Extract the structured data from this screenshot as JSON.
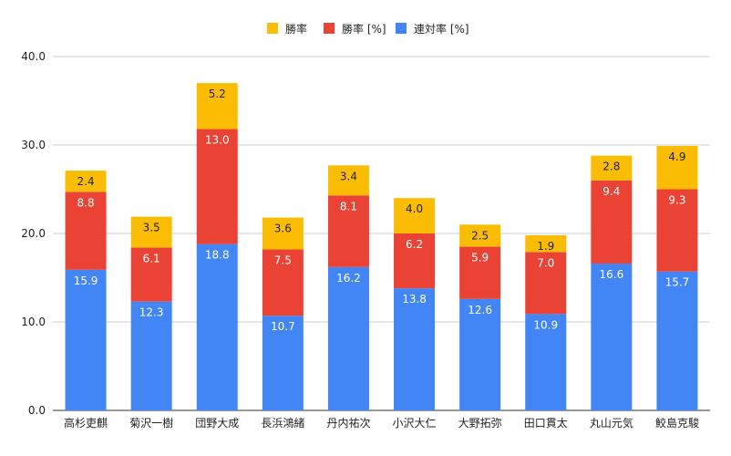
{
  "chart_data": {
    "type": "bar",
    "stacked": true,
    "categories": [
      "高杉吏麒",
      "菊沢一樹",
      "団野大成",
      "長浜鴻緒",
      "丹内祐次",
      "小沢大仁",
      "大野拓弥",
      "田口貫太",
      "丸山元気",
      "鮫島克駿"
    ],
    "series": [
      {
        "name": "連対率 [%]",
        "color": "#4285f4",
        "label_color": "#ffffff",
        "values": [
          15.9,
          12.3,
          18.8,
          10.7,
          16.2,
          13.8,
          12.6,
          10.9,
          16.6,
          15.7
        ]
      },
      {
        "name": "勝率 [%]",
        "color": "#ea4335",
        "label_color": "#ffffff",
        "values": [
          8.8,
          6.1,
          13.0,
          7.5,
          8.1,
          6.2,
          5.9,
          7.0,
          9.4,
          9.3
        ]
      },
      {
        "name": "勝率",
        "color": "#fbbc04",
        "label_color": "#222222",
        "values": [
          2.4,
          3.5,
          5.2,
          3.6,
          3.4,
          4.0,
          2.5,
          1.9,
          2.8,
          4.9
        ]
      }
    ],
    "legend_order": [
      "勝率",
      "勝率 [%]",
      "連対率 [%]"
    ],
    "legend_position": "top",
    "ylim": [
      0,
      40
    ],
    "yticks": [
      "0.0",
      "10.0",
      "20.0",
      "30.0",
      "40.0"
    ],
    "grid": true,
    "title": "",
    "xlabel": "",
    "ylabel": ""
  }
}
